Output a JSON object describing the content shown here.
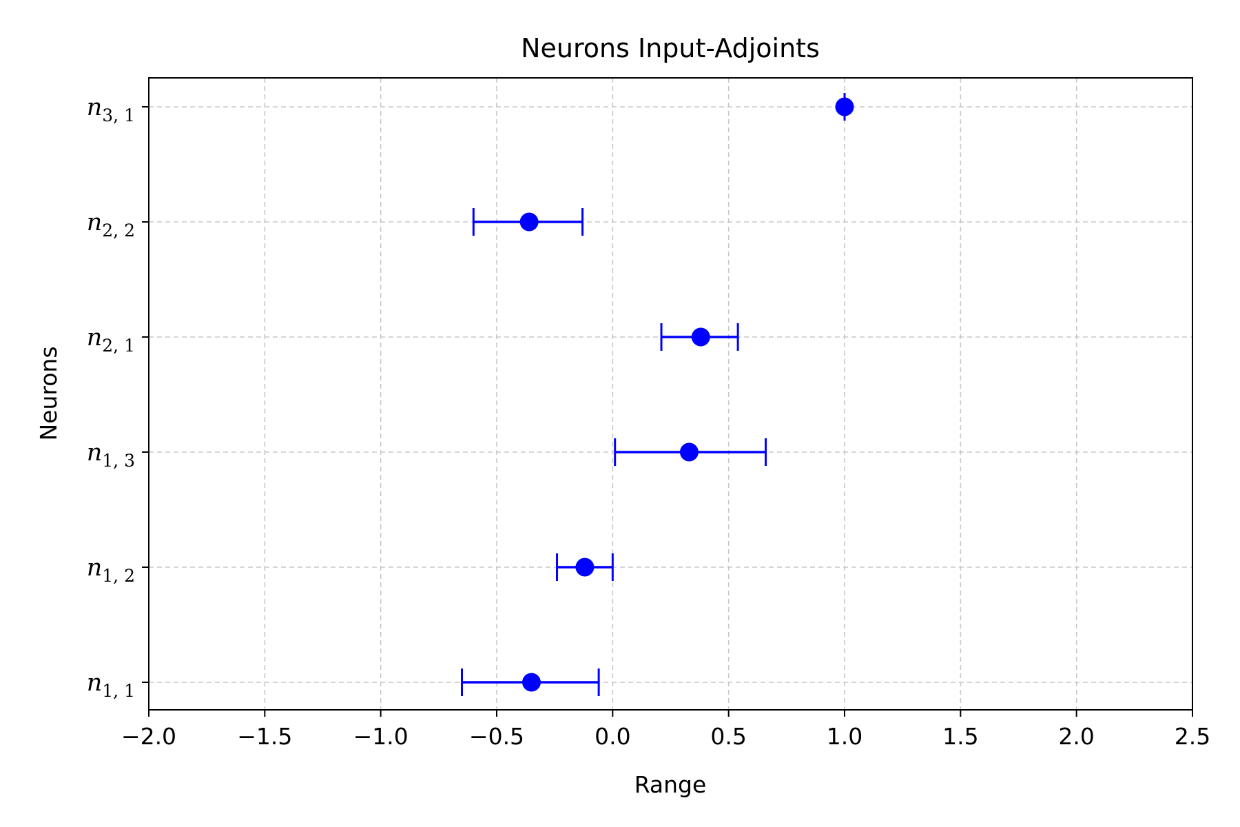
{
  "chart_data": {
    "type": "errorbar",
    "orientation": "horizontal",
    "title": "Neurons Input-Adjoints",
    "xlabel": "Range",
    "ylabel": "Neurons",
    "xlim": [
      -2.0,
      2.5
    ],
    "xticks": [
      -2.0,
      -1.5,
      -1.0,
      -0.5,
      0.0,
      0.5,
      1.0,
      1.5,
      2.0,
      2.5
    ],
    "xtick_labels": [
      "−2.0",
      "−1.5",
      "−1.0",
      "−0.5",
      "0.0",
      "0.5",
      "1.0",
      "1.5",
      "2.0",
      "2.5"
    ],
    "grid": true,
    "color": "#0000ff",
    "categories": [
      {
        "base": "n",
        "sub": "1, 1"
      },
      {
        "base": "n",
        "sub": "1, 2"
      },
      {
        "base": "n",
        "sub": "1, 3"
      },
      {
        "base": "n",
        "sub": "2, 1"
      },
      {
        "base": "n",
        "sub": "2, 2"
      },
      {
        "base": "n",
        "sub": "3, 1"
      }
    ],
    "series": [
      {
        "points": [
          {
            "value": -0.35,
            "low": -0.65,
            "high": -0.06
          },
          {
            "value": -0.12,
            "low": -0.24,
            "high": 0.0
          },
          {
            "value": 0.33,
            "low": 0.01,
            "high": 0.66
          },
          {
            "value": 0.38,
            "low": 0.21,
            "high": 0.54
          },
          {
            "value": -0.36,
            "low": -0.6,
            "high": -0.13
          },
          {
            "value": 1.0,
            "low": 1.0,
            "high": 1.0
          }
        ]
      }
    ]
  }
}
